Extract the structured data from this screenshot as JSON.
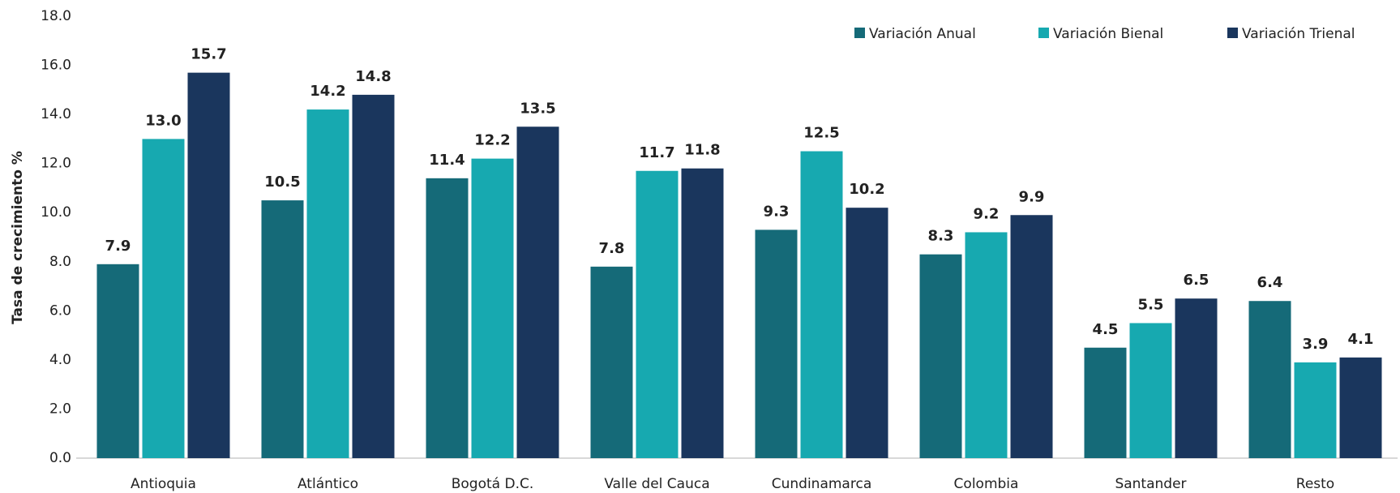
{
  "chart_data": {
    "type": "bar",
    "y_label": "Tasa de crecimiento %",
    "categories": [
      "Antioquia",
      "Atlántico",
      "Bogotá D.C.",
      "Valle del Cauca",
      "Cundinamarca",
      "Colombia",
      "Santander",
      "Resto"
    ],
    "series": [
      {
        "name": "Variación Anual",
        "color": "#156a78",
        "values": [
          7.9,
          10.5,
          11.4,
          7.8,
          9.3,
          8.3,
          4.5,
          6.4
        ],
        "value_labels": [
          "7.9",
          "10.5",
          "11.4",
          "7.8",
          "9.3",
          "8.3",
          "4.5",
          "6.4"
        ]
      },
      {
        "name": "Variación Bienal",
        "color": "#17a9b0",
        "values": [
          13.0,
          14.2,
          12.2,
          11.7,
          12.5,
          9.2,
          5.5,
          3.9
        ],
        "value_labels": [
          "13.0",
          "14.2",
          "12.2",
          "11.7",
          "12.5",
          "9.2",
          "5.5",
          "3.9"
        ]
      },
      {
        "name": "Variación Trienal",
        "color": "#1a365d",
        "values": [
          15.7,
          14.8,
          13.5,
          11.8,
          10.2,
          9.9,
          6.5,
          4.1
        ],
        "value_labels": [
          "15.7",
          "14.8",
          "13.5",
          "11.8",
          "10.2",
          "9.9",
          "6.5",
          "4.1"
        ]
      }
    ],
    "ylim": [
      0,
      18
    ],
    "yticks": [
      {
        "value": 0,
        "label": "0.0"
      },
      {
        "value": 2,
        "label": "2.0"
      },
      {
        "value": 4,
        "label": "4.0"
      },
      {
        "value": 6,
        "label": "6.0"
      },
      {
        "value": 8,
        "label": "8.0"
      },
      {
        "value": 10,
        "label": "10.0"
      },
      {
        "value": 12,
        "label": "12.0"
      },
      {
        "value": 14,
        "label": "14.0"
      },
      {
        "value": 16,
        "label": "16.0"
      },
      {
        "value": 18,
        "label": "18.0"
      }
    ],
    "legend": "top-right"
  }
}
